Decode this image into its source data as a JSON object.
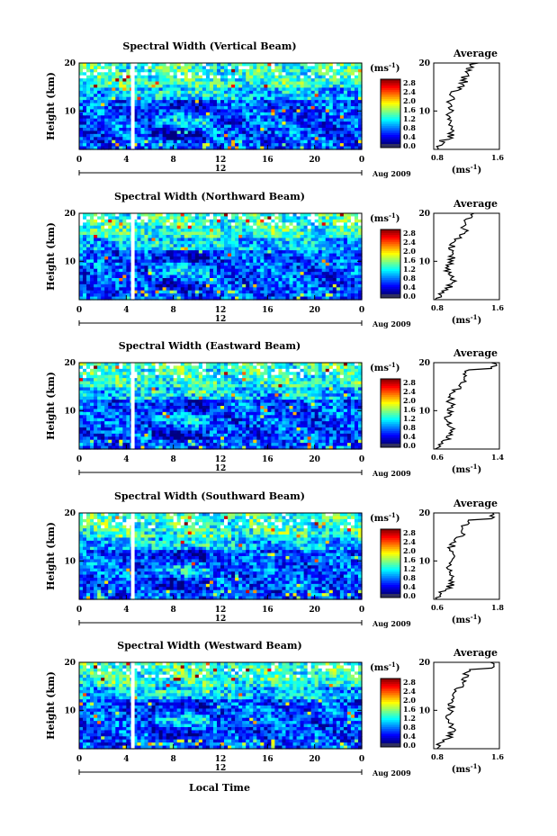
{
  "figure": {
    "xlabel": "Local Time",
    "date_label": "Aug 2009",
    "mid_label": "12",
    "ylabel": "Height (km)",
    "avg_title": "Average",
    "cb_unit": "(ms",
    "cb_unit_sup": "-1",
    "avg_unit": "(ms",
    "avg_unit_sup": "-1"
  },
  "chart_data": [
    {
      "type": "heatmap",
      "title": "Spectral Width (Vertical Beam)",
      "x_ticks": [
        "0",
        "4",
        "8",
        "12",
        "16",
        "20",
        "0"
      ],
      "xlim": [
        0,
        24
      ],
      "y_ticks": [
        "20",
        "10"
      ],
      "ylim": [
        2,
        20
      ],
      "colorbar": {
        "ticks": [
          "2.8",
          "2.4",
          "2.0",
          "1.6",
          "1.2",
          "0.8",
          "0.4",
          "0.0"
        ],
        "range": [
          0,
          3.0
        ]
      },
      "average": {
        "title": "Average",
        "xlim": [
          0.8,
          1.6
        ],
        "x_ticks": [
          "0.8",
          "1.6"
        ],
        "y_ticks": [
          "20",
          "10"
        ]
      }
    },
    {
      "type": "heatmap",
      "title": "Spectral Width (Northward Beam)",
      "x_ticks": [
        "0",
        "4",
        "8",
        "12",
        "16",
        "20",
        "0"
      ],
      "xlim": [
        0,
        24
      ],
      "y_ticks": [
        "20",
        "10"
      ],
      "ylim": [
        2,
        20
      ],
      "colorbar": {
        "ticks": [
          "2.8",
          "2.4",
          "2.0",
          "1.6",
          "1.2",
          "0.8",
          "0.4",
          "0.0"
        ],
        "range": [
          0,
          3.0
        ]
      },
      "average": {
        "title": "Average",
        "xlim": [
          0.8,
          1.6
        ],
        "x_ticks": [
          "0.8",
          "1.6"
        ],
        "y_ticks": [
          "20",
          "10"
        ]
      }
    },
    {
      "type": "heatmap",
      "title": "Spectral Width (Eastward Beam)",
      "x_ticks": [
        "0",
        "4",
        "8",
        "12",
        "16",
        "20",
        "0"
      ],
      "xlim": [
        0,
        24
      ],
      "y_ticks": [
        "20",
        "10"
      ],
      "ylim": [
        2,
        20
      ],
      "colorbar": {
        "ticks": [
          "2.8",
          "2.4",
          "2.0",
          "1.6",
          "1.2",
          "0.8",
          "0.4",
          "0.0"
        ],
        "range": [
          0,
          3.0
        ]
      },
      "average": {
        "title": "Average",
        "xlim": [
          0.6,
          1.4
        ],
        "x_ticks": [
          "0.6",
          "1.4"
        ],
        "y_ticks": [
          "20",
          "10"
        ]
      }
    },
    {
      "type": "heatmap",
      "title": "Spectral Width (Southward Beam)",
      "x_ticks": [
        "0",
        "4",
        "8",
        "12",
        "16",
        "20",
        "0"
      ],
      "xlim": [
        0,
        24
      ],
      "y_ticks": [
        "20",
        "10"
      ],
      "ylim": [
        2,
        20
      ],
      "colorbar": {
        "ticks": [
          "2.8",
          "2.4",
          "2.0",
          "1.6",
          "1.2",
          "0.8",
          "0.4",
          "0.0"
        ],
        "range": [
          0,
          3.0
        ]
      },
      "average": {
        "title": "Average",
        "xlim": [
          0.6,
          1.8
        ],
        "x_ticks": [
          "0.6",
          "1.8"
        ],
        "y_ticks": [
          "20",
          "10"
        ]
      }
    },
    {
      "type": "heatmap",
      "title": "Spectral Width (Westward Beam)",
      "x_ticks": [
        "0",
        "4",
        "8",
        "12",
        "16",
        "20",
        "0"
      ],
      "xlim": [
        0,
        24
      ],
      "y_ticks": [
        "20",
        "10"
      ],
      "ylim": [
        2,
        20
      ],
      "colorbar": {
        "ticks": [
          "2.8",
          "2.4",
          "2.0",
          "1.6",
          "1.2",
          "0.8",
          "0.4",
          "0.0"
        ],
        "range": [
          0,
          3.0
        ]
      },
      "average": {
        "title": "Average",
        "xlim": [
          0.8,
          1.6
        ],
        "x_ticks": [
          "0.8",
          "1.6"
        ],
        "y_ticks": [
          "20",
          "10"
        ]
      }
    }
  ]
}
